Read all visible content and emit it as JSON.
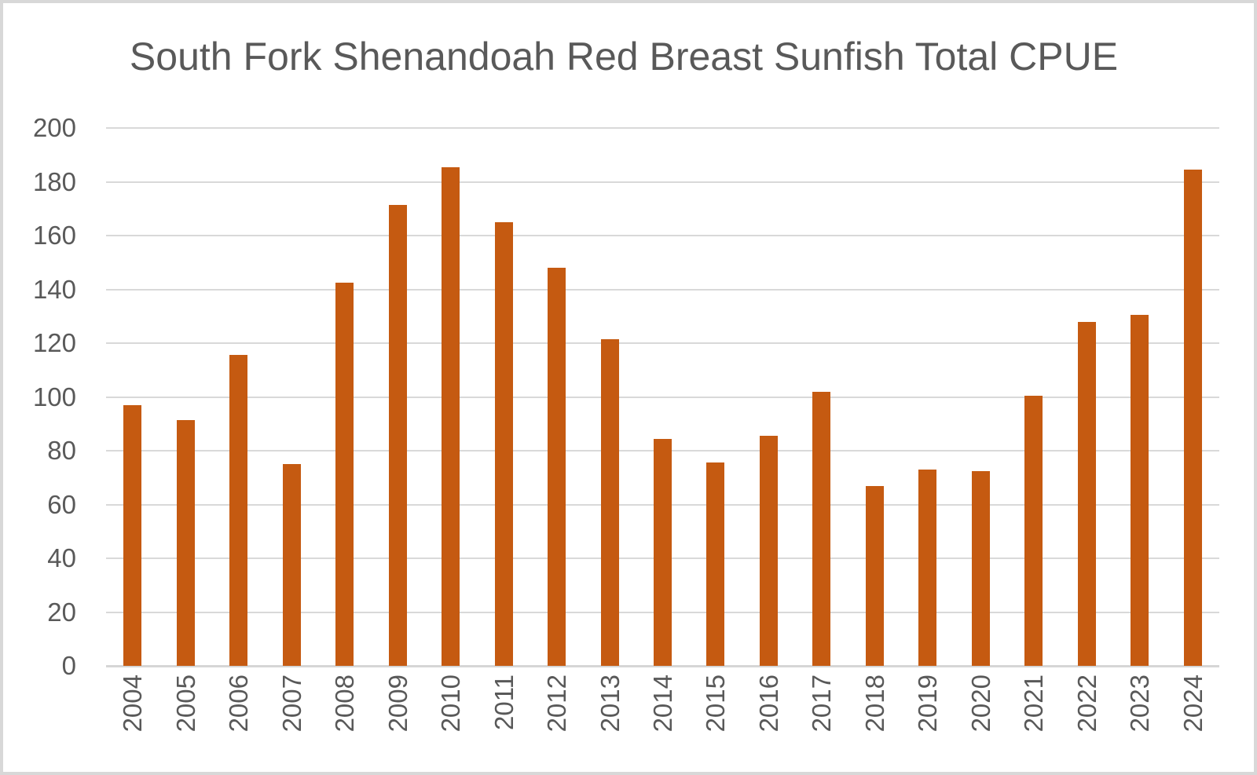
{
  "chart_data": {
    "type": "bar",
    "title": "South Fork Shenandoah Red Breast Sunfish Total CPUE",
    "categories": [
      "2004",
      "2005",
      "2006",
      "2007",
      "2008",
      "2009",
      "2010",
      "2011",
      "2012",
      "2013",
      "2014",
      "2015",
      "2016",
      "2017",
      "2018",
      "2019",
      "2020",
      "2021",
      "2022",
      "2023",
      "2024"
    ],
    "values": [
      97,
      91.5,
      115.5,
      75,
      142.5,
      171.5,
      185.5,
      165,
      148,
      121.5,
      84.5,
      75.5,
      85.5,
      102,
      67,
      73,
      72.5,
      100.5,
      128,
      130.5,
      184.5
    ],
    "xlabel": "",
    "ylabel": "",
    "ylim": [
      0,
      200
    ],
    "yticks": [
      0,
      20,
      40,
      60,
      80,
      100,
      120,
      140,
      160,
      180,
      200
    ],
    "grid": "horizontal",
    "legend": "none",
    "colors": {
      "bar": "#C55A11",
      "gridline": "#D9D9D9",
      "axis_line": "#D6D6D6",
      "text": "#595959",
      "background": "#FFFFFF",
      "frame_border": "#D8D8D8"
    }
  }
}
